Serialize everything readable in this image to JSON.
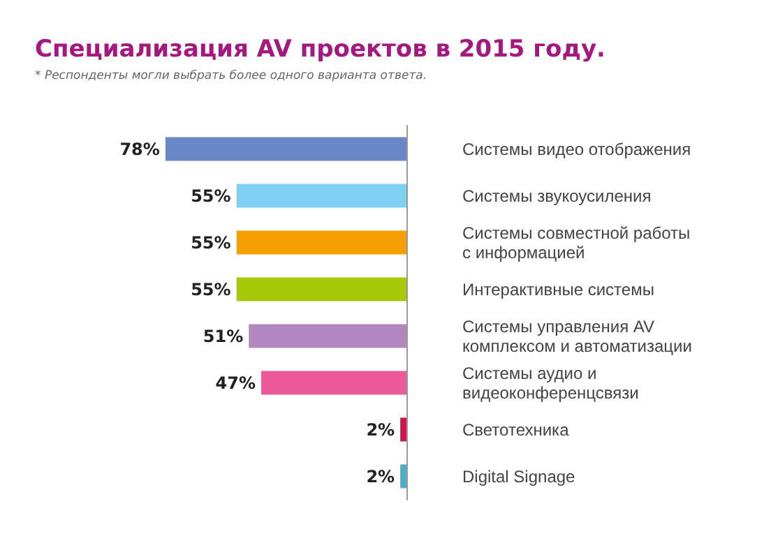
{
  "chart_data": {
    "type": "bar",
    "orientation": "horizontal",
    "title": "Специализация AV проектов в 2015 году.",
    "subtitle": "* Респонденты могли выбрать более одного варианта ответа.",
    "categories": [
      "Системы видео отображения",
      "Системы звукоусиления",
      "Системы совместной работы с информацией",
      "Интерактивные системы",
      "Системы управления AV комплексом и автоматизации",
      "Системы аудио и видеоконференцсвязи",
      "Светотехника",
      "Digital Signage"
    ],
    "values": [
      78,
      55,
      55,
      55,
      51,
      47,
      2,
      2
    ],
    "value_labels": [
      "78%",
      "55%",
      "55%",
      "55%",
      "51%",
      "47%",
      "2%",
      "2%"
    ],
    "colors": [
      "#6a87c8",
      "#7fd0f2",
      "#f5a000",
      "#a8c80a",
      "#b286bf",
      "#ec5a9c",
      "#d4124e",
      "#4ab1c5"
    ]
  }
}
